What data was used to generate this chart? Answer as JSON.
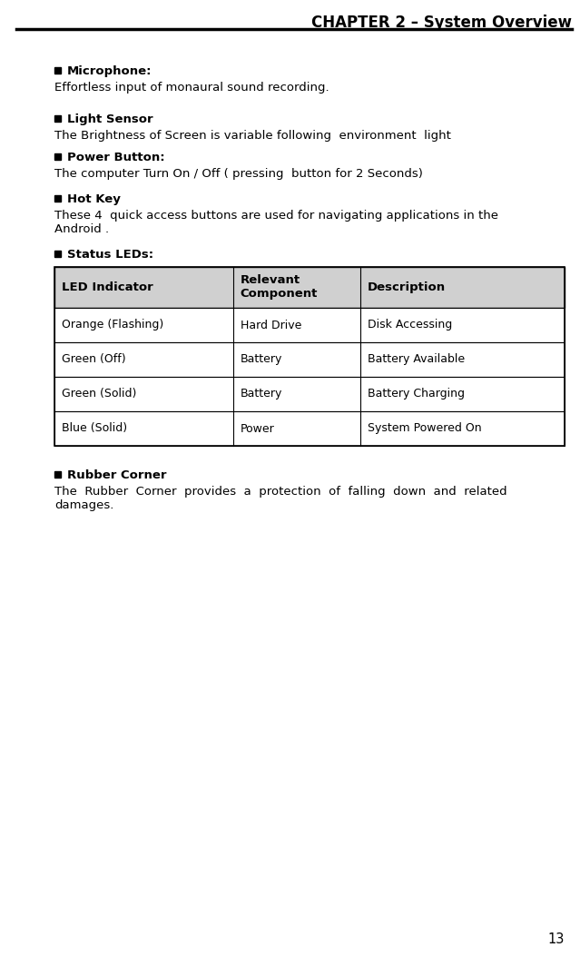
{
  "header_text": "CHAPTER 2 – System Overview",
  "page_number": "13",
  "bg_color": "#ffffff",
  "header_line_color": "#000000",
  "header_font_size": 12,
  "body_font_size": 9.5,
  "sections": [
    {
      "bullet_bold": "Microphone:",
      "body": "Effortless input of monaural sound recording."
    },
    {
      "bullet_bold": "Light Sensor",
      "body": "The Brightness of Screen is variable following  environment  light"
    },
    {
      "bullet_bold": "Power Button:",
      "body": "The computer Turn On / Off ( pressing  button for 2 Seconds)"
    },
    {
      "bullet_bold": "Hot Key",
      "body_line1": "These 4  quick access buttons are used for navigating applications in the",
      "body_line2": "Android ."
    },
    {
      "bullet_bold": "Status LEDs:",
      "body": ""
    }
  ],
  "table_header": [
    "LED Indicator",
    "Relevant\nComponent",
    "Description"
  ],
  "table_rows": [
    [
      "Orange (Flashing)",
      "Hard Drive",
      "Disk Accessing"
    ],
    [
      "Green (Off)",
      "Battery",
      "Battery Available"
    ],
    [
      "Green (Solid)",
      "Battery",
      "Battery Charging"
    ],
    [
      "Blue (Solid)",
      "Power",
      "System Powered On"
    ]
  ],
  "table_header_bg": "#d0d0d0",
  "table_row_bg": "#ffffff",
  "table_border_color": "#000000",
  "last_section": {
    "bullet_bold": "Rubber Corner",
    "body_line1": "The  Rubber  Corner  provides  a  protection  of  falling  down  and  related",
    "body_line2": "damages."
  }
}
